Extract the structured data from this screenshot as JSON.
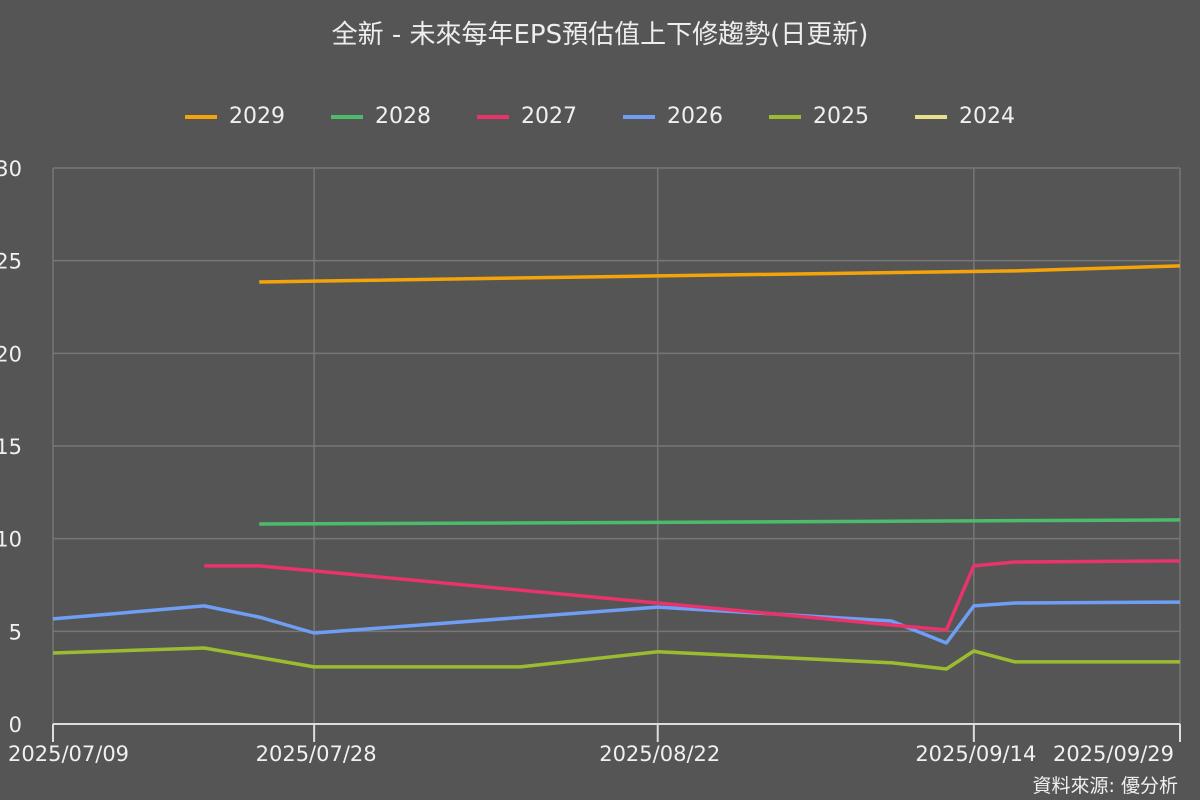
{
  "chart_data": {
    "type": "line",
    "title": "全新 - 未來每年EPS預估值上下修趨勢(日更新)",
    "source": "資料來源: 優分析",
    "xlabel": "",
    "ylabel": "",
    "ylim": [
      0,
      30
    ],
    "yticks": [
      0,
      5,
      10,
      15,
      20,
      25,
      30
    ],
    "xstart": "2025/07/09",
    "xend_day": 82,
    "xticks": [
      {
        "label": "2025/07/09",
        "day": 0
      },
      {
        "label": "2025/07/28",
        "day": 19
      },
      {
        "label": "2025/08/22",
        "day": 44
      },
      {
        "label": "2025/09/14",
        "day": 67
      },
      {
        "label": "2025/09/29",
        "day": 82
      }
    ],
    "grid": true,
    "legend_position": "top-center",
    "series": [
      {
        "name": "2029",
        "color": "#f5a30a",
        "points": [
          [
            15,
            23.85
          ],
          [
            19,
            23.9
          ],
          [
            44,
            24.18
          ],
          [
            70,
            24.45
          ],
          [
            82,
            24.72
          ]
        ]
      },
      {
        "name": "2028",
        "color": "#4cbb6c",
        "points": [
          [
            15,
            10.79
          ],
          [
            44,
            10.88
          ],
          [
            82,
            11.01
          ]
        ]
      },
      {
        "name": "2027",
        "color": "#e8336b",
        "points": [
          [
            11,
            8.53
          ],
          [
            15,
            8.53
          ],
          [
            19,
            8.26
          ],
          [
            44,
            6.53
          ],
          [
            61,
            5.34
          ],
          [
            65,
            5.07
          ],
          [
            67,
            8.53
          ],
          [
            70,
            8.74
          ],
          [
            82,
            8.8
          ]
        ]
      },
      {
        "name": "2026",
        "color": "#6f9ef5",
        "points": [
          [
            0,
            5.67
          ],
          [
            11,
            6.37
          ],
          [
            15,
            5.77
          ],
          [
            19,
            4.91
          ],
          [
            44,
            6.31
          ],
          [
            61,
            5.56
          ],
          [
            65,
            4.37
          ],
          [
            67,
            6.37
          ],
          [
            70,
            6.53
          ],
          [
            82,
            6.58
          ]
        ]
      },
      {
        "name": "2025",
        "color": "#9bbb30",
        "points": [
          [
            0,
            3.83
          ],
          [
            11,
            4.1
          ],
          [
            19,
            3.08
          ],
          [
            34,
            3.08
          ],
          [
            44,
            3.9
          ],
          [
            61,
            3.3
          ],
          [
            65,
            2.97
          ],
          [
            67,
            3.94
          ],
          [
            70,
            3.35
          ],
          [
            82,
            3.35
          ]
        ]
      },
      {
        "name": "2024",
        "color": "#e6df8c",
        "points": []
      }
    ]
  }
}
